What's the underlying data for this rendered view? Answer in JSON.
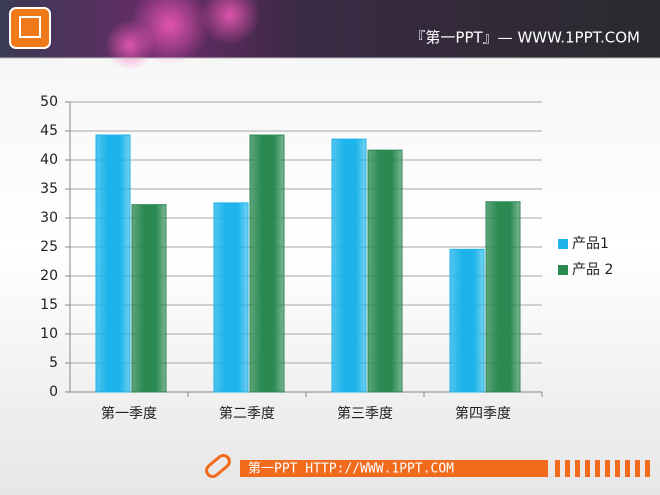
{
  "header": {
    "title": "『第一PPT』— WWW.1PPT.COM"
  },
  "footer": {
    "text": "第一PPT HTTP://WWW.1PPT.COM"
  },
  "chart_data": {
    "type": "bar",
    "categories": [
      "第一季度",
      "第二季度",
      "第三季度",
      "第四季度"
    ],
    "series": [
      {
        "name": "产品1",
        "color": "#1cb4ea",
        "values": [
          44.3,
          32.6,
          43.6,
          24.6
        ]
      },
      {
        "name": "产品 2",
        "color": "#2b8a52",
        "values": [
          32.3,
          44.3,
          41.7,
          32.8
        ]
      }
    ],
    "ylim": [
      0,
      50
    ],
    "yticks": [
      0,
      5,
      10,
      15,
      20,
      25,
      30,
      35,
      40,
      45,
      50
    ],
    "grid": true,
    "legend": "right"
  }
}
